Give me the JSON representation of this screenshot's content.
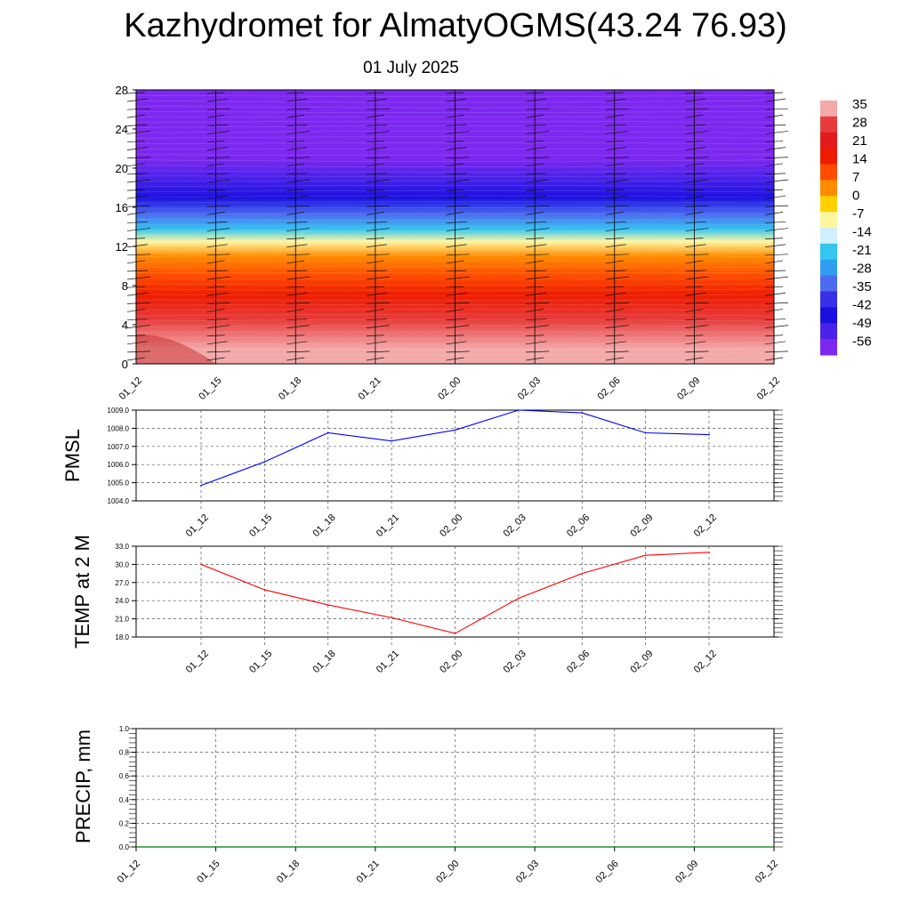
{
  "title": "Kazhydromet for AlmatyOGMS(43.24 76.93)",
  "subtitle": "01 July 2025",
  "time_labels": [
    "01_12",
    "01_15",
    "01_18",
    "01_21",
    "02_00",
    "02_03",
    "02_06",
    "02_09",
    "02_12"
  ],
  "colorbar": {
    "labels": [
      "35",
      "28",
      "21",
      "14",
      "7",
      "0",
      "-7",
      "-14",
      "-21",
      "-28",
      "-35",
      "-42",
      "-49",
      "-56"
    ],
    "colors": [
      "#f4a9a9",
      "#e83c3c",
      "#e21c1c",
      "#ee1b00",
      "#ff4c00",
      "#ff8c00",
      "#ffd000",
      "#fff7a0",
      "#d0f0ff",
      "#34c5f0",
      "#2f9ef0",
      "#4b6cf0",
      "#3a2fe8",
      "#1b10e0",
      "#4a22ea",
      "#7d28f0"
    ]
  },
  "chart_data": [
    {
      "type": "heatmap",
      "title": "",
      "xlabel": "",
      "ylabel": "",
      "x": [
        "01_12",
        "01_15",
        "01_18",
        "01_21",
        "02_00",
        "02_03",
        "02_06",
        "02_09",
        "02_12"
      ],
      "yticks": [
        "0",
        "4",
        "8",
        "12",
        "16",
        "20",
        "24",
        "28"
      ],
      "ylim": [
        0,
        28
      ],
      "zlim": [
        -56,
        35
      ],
      "bands": [
        {
          "y_from": 0,
          "y_to": 3,
          "value": 30
        },
        {
          "y_from": 3,
          "y_to": 6,
          "value": 24
        },
        {
          "y_from": 6,
          "y_to": 8,
          "value": 17
        },
        {
          "y_from": 8,
          "y_to": 10,
          "value": 9
        },
        {
          "y_from": 10,
          "y_to": 12,
          "value": 1
        },
        {
          "y_from": 12,
          "y_to": 13,
          "value": -10
        },
        {
          "y_from": 13,
          "y_to": 14.5,
          "value": -20
        },
        {
          "y_from": 14.5,
          "y_to": 16,
          "value": -30
        },
        {
          "y_from": 16,
          "y_to": 18,
          "value": -40
        },
        {
          "y_from": 18,
          "y_to": 20,
          "value": -48
        },
        {
          "y_from": 20,
          "y_to": 22,
          "value": -56
        },
        {
          "y_from": 22,
          "y_to": 24,
          "value": -52
        },
        {
          "y_from": 24,
          "y_to": 28,
          "value": -60
        }
      ]
    },
    {
      "type": "line",
      "ylabel": "PMSL",
      "x": [
        "01_12",
        "01_15",
        "01_18",
        "01_21",
        "02_00",
        "02_03",
        "02_06",
        "02_09",
        "02_12"
      ],
      "yticks": [
        "1004.0",
        "1005.0",
        "1006.0",
        "1007.0",
        "1008.0",
        "1009.0"
      ],
      "ylim": [
        1004.0,
        1009.0
      ],
      "series": [
        {
          "values": [
            1004.85,
            1006.15,
            1007.75,
            1007.3,
            1007.9,
            1009.0,
            1008.85,
            1007.75,
            1007.65
          ],
          "color": "#0000ff"
        }
      ],
      "grid": true
    },
    {
      "type": "line",
      "ylabel": "TEMP at 2 M",
      "x": [
        "01_12",
        "01_15",
        "01_18",
        "01_21",
        "02_00",
        "02_03",
        "02_06",
        "02_09",
        "02_12"
      ],
      "yticks": [
        "18.0",
        "21.0",
        "24.0",
        "27.0",
        "30.0",
        "33.0"
      ],
      "ylim": [
        18.0,
        33.0
      ],
      "series": [
        {
          "values": [
            30.0,
            25.8,
            23.3,
            21.2,
            18.6,
            24.4,
            28.5,
            31.5,
            32.0
          ],
          "color": "#ff0000"
        }
      ],
      "grid": true
    },
    {
      "type": "line",
      "ylabel": "PRECIP, mm",
      "x": [
        "01_12",
        "01_15",
        "01_18",
        "01_21",
        "02_00",
        "02_03",
        "02_06",
        "02_09",
        "02_12"
      ],
      "yticks": [
        "0.0",
        "0.2",
        "0.4",
        "0.6",
        "0.8",
        "1.0"
      ],
      "ylim": [
        0.0,
        1.0
      ],
      "series": [
        {
          "values": [
            0,
            0,
            0,
            0,
            0,
            0,
            0,
            0,
            0
          ],
          "color": "#007700"
        }
      ],
      "grid": true
    }
  ]
}
